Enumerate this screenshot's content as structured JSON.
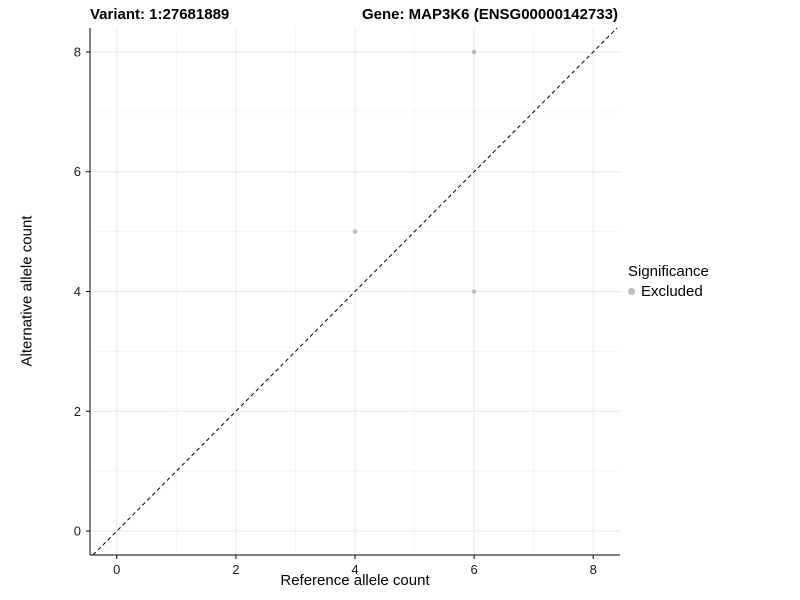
{
  "chart_data": {
    "type": "scatter",
    "title_left": "Variant: 1:27681889",
    "title_right": "Gene: MAP3K6 (ENSG00000142733)",
    "xlabel": "Reference allele count",
    "ylabel": "Alternative allele count",
    "xlim": [
      -0.45,
      8.45
    ],
    "ylim": [
      -0.4,
      8.4
    ],
    "xticks": [
      0,
      2,
      4,
      6,
      8
    ],
    "yticks": [
      0,
      2,
      4,
      6,
      8
    ],
    "xminor": [
      1,
      3,
      5,
      7
    ],
    "yminor": [
      1,
      3,
      5,
      7
    ],
    "grid": true,
    "points": [
      {
        "x": 6,
        "y": 8,
        "significance": "Excluded"
      },
      {
        "x": 4,
        "y": 5,
        "significance": "Excluded"
      },
      {
        "x": 6,
        "y": 4,
        "significance": "Excluded"
      }
    ],
    "point_color": "#bdbdbd",
    "reference_line": {
      "type": "y=x",
      "style": "dashed",
      "color": "#000000"
    },
    "legend": {
      "title": "Significance",
      "position": "right",
      "items": [
        {
          "label": "Excluded",
          "color": "#bdbdbd"
        }
      ]
    },
    "colors": {
      "axis": "#000000",
      "major_grid": "#e8e8e8",
      "minor_grid": "#f3f3f3",
      "tick_text": "#1a1a1a"
    }
  }
}
